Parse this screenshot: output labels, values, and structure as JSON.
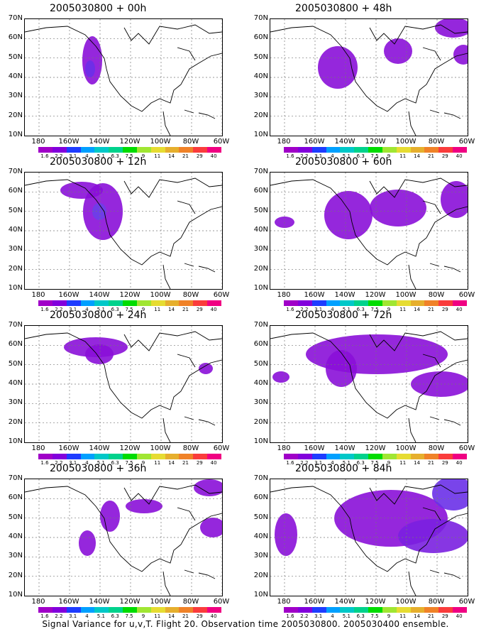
{
  "panels": [
    {
      "title": "2005030800 + 00h"
    },
    {
      "title": "2005030800 + 12h"
    },
    {
      "title": "2005030800 + 24h"
    },
    {
      "title": "2005030800 + 36h"
    },
    {
      "title": "2005030800 + 48h"
    },
    {
      "title": "2005030800 + 60h"
    },
    {
      "title": "2005030800 + 72h"
    },
    {
      "title": "2005030800 + 84h"
    }
  ],
  "y_axis": {
    "labels": [
      "70N",
      "60N",
      "50N",
      "40N",
      "30N",
      "20N",
      "10N"
    ]
  },
  "x_axis": {
    "labels": [
      "180",
      "160W",
      "140W",
      "120W",
      "100W",
      "80W",
      "60W"
    ]
  },
  "colorbar": {
    "colors": [
      "#a000c8",
      "#8200dc",
      "#1e3cff",
      "#00a0ff",
      "#00c8c8",
      "#00d28c",
      "#00dc00",
      "#a0e632",
      "#e6dc32",
      "#e6af2d",
      "#f08228",
      "#fa3c3c",
      "#f00082"
    ],
    "labels": [
      "1.6",
      "2.2",
      "3.1",
      "4",
      "5.1",
      "6.3",
      "7.5",
      "9",
      "11",
      "14",
      "21",
      "29",
      "40"
    ]
  },
  "caption": "Signal Variance for u,v,T. Flight 20. Observation time 2005030800. 2005030400 ensemble."
}
